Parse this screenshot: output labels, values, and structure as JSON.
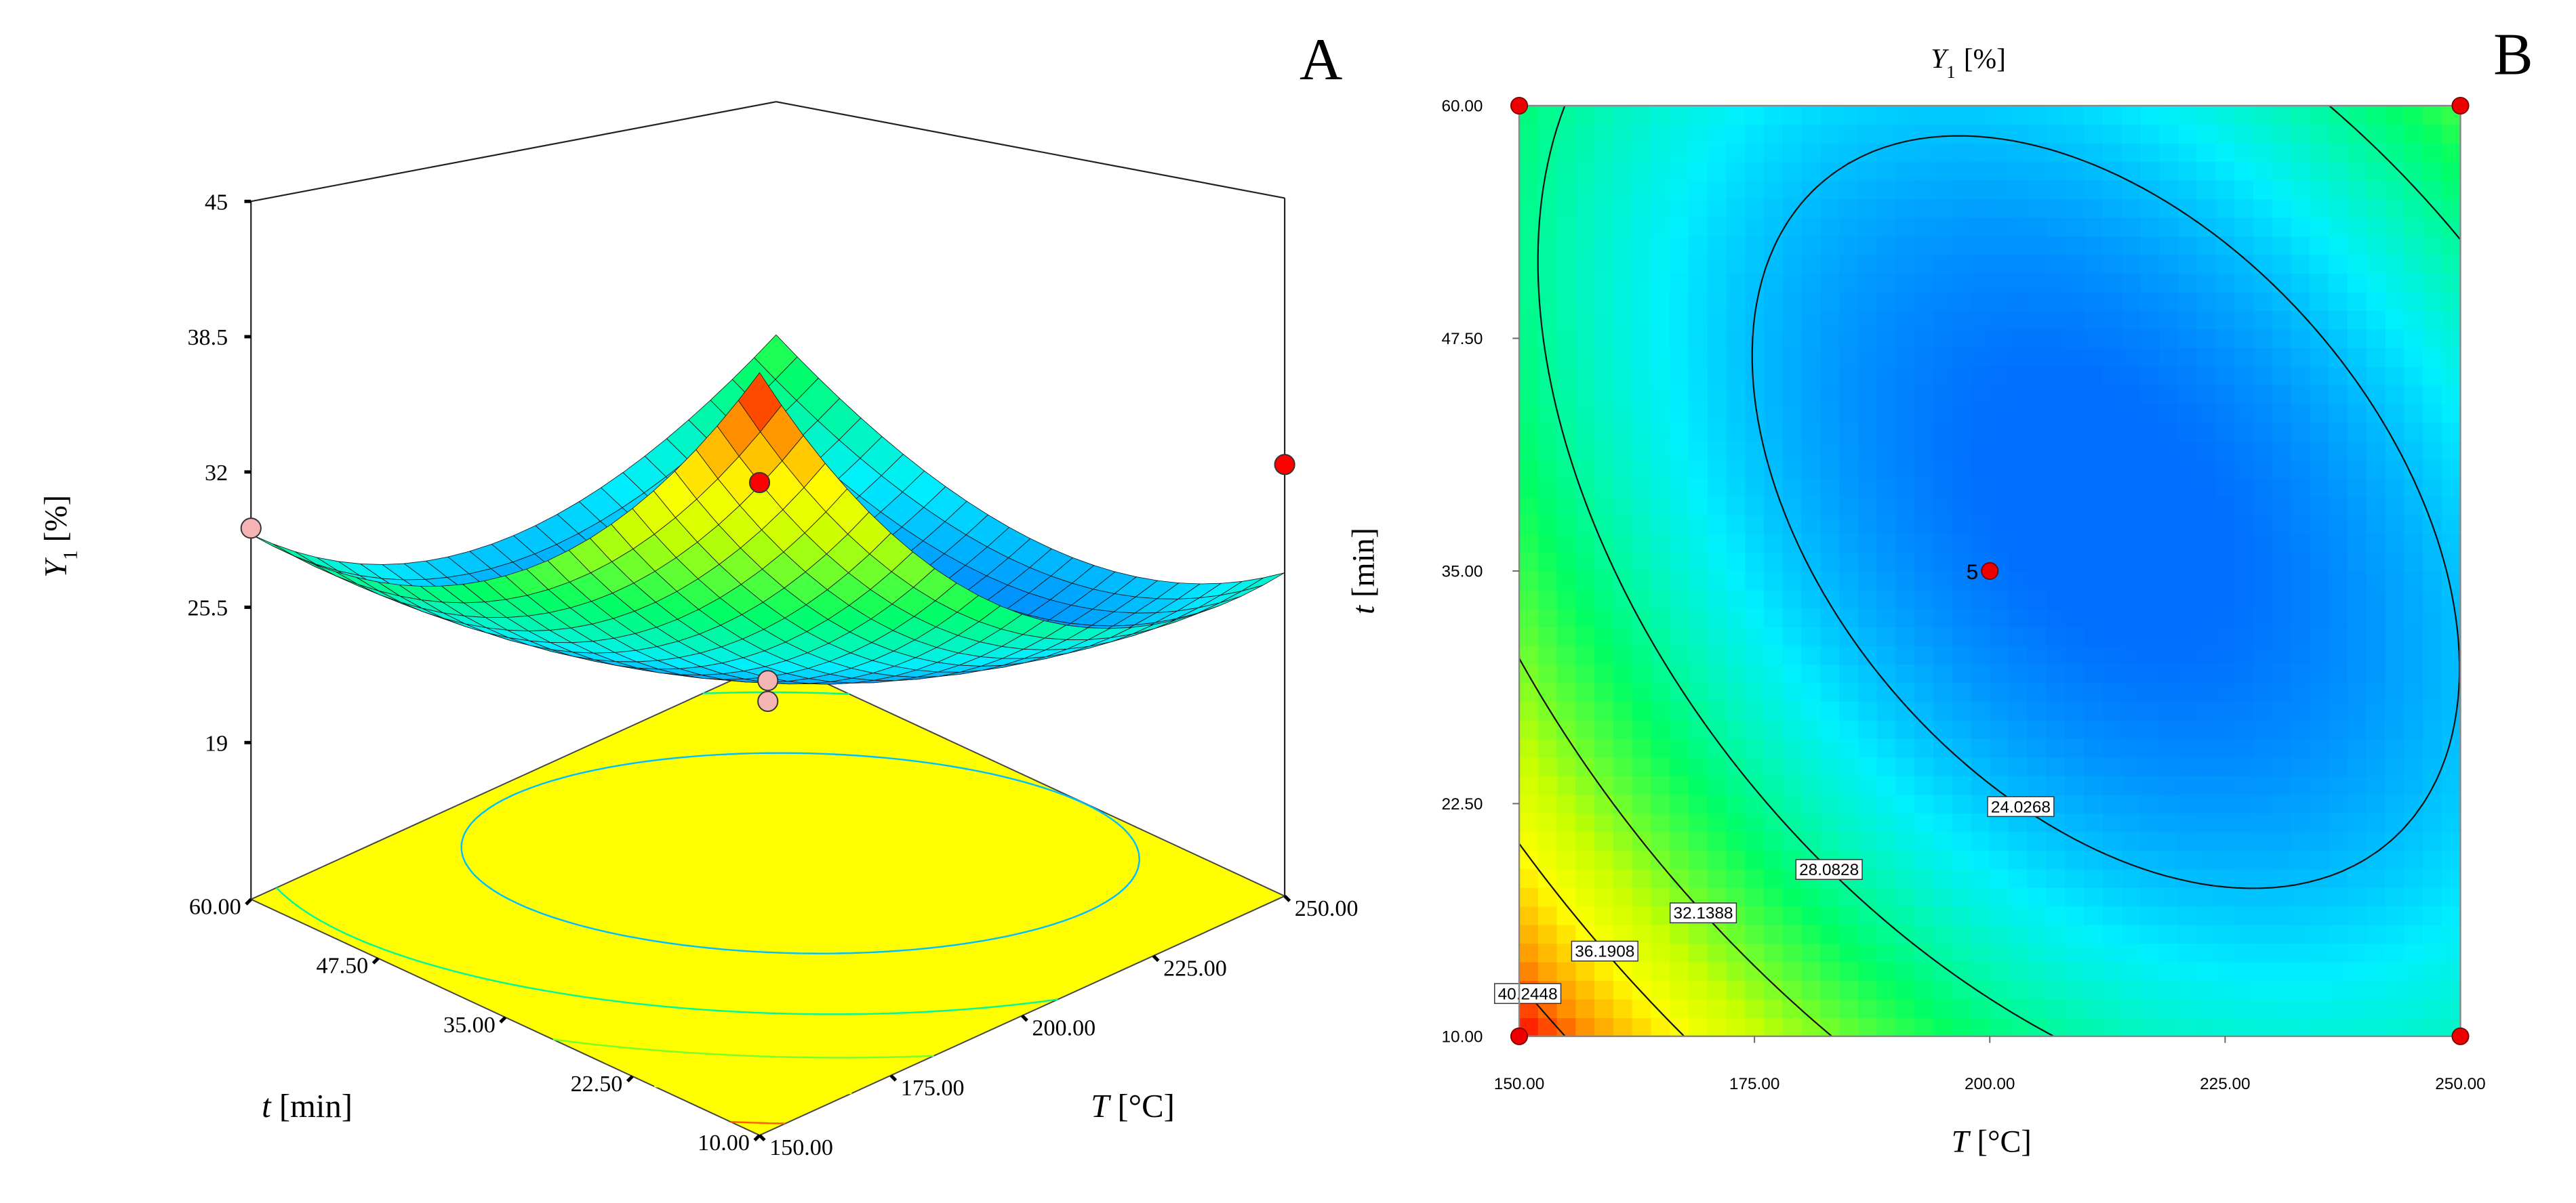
{
  "chart_data": [
    {
      "type": "surface3d",
      "panel_label": "A",
      "x_label": {
        "symbol": "T",
        "unit": "[°C]"
      },
      "y_label": {
        "symbol": "t",
        "unit": "[min]"
      },
      "z_label": {
        "symbol": "Y",
        "subscript": "1",
        "unit": "[%]"
      },
      "x": [
        150,
        175,
        200,
        225,
        250
      ],
      "y": [
        10,
        22.5,
        35,
        47.5,
        60
      ],
      "z": [
        [
          42,
          34.125,
          29,
          26.625,
          27
        ],
        [
          35.1875,
          28.375,
          24.3125,
          23,
          24.4375
        ],
        [
          30.75,
          25,
          22,
          21.75,
          24.25
        ],
        [
          28.6875,
          24,
          22.0625,
          22.875,
          26.4375
        ],
        [
          29,
          25.375,
          24.5,
          26.375,
          31
        ]
      ],
      "xlim": [
        150,
        250
      ],
      "ylim": [
        10,
        60
      ],
      "zlim": [
        19,
        45
      ],
      "xticks": [
        {
          "value": 150,
          "label": "150.00"
        },
        {
          "value": 175,
          "label": "175.00"
        },
        {
          "value": 200,
          "label": "200.00"
        },
        {
          "value": 225,
          "label": "225.00"
        },
        {
          "value": 250,
          "label": "250.00"
        }
      ],
      "yticks": [
        {
          "value": 10,
          "label": "10.00"
        },
        {
          "value": 22.5,
          "label": "22.50"
        },
        {
          "value": 35,
          "label": "35.00"
        },
        {
          "value": 47.5,
          "label": "47.50"
        },
        {
          "value": 60,
          "label": "60.00"
        }
      ],
      "zticks": [
        19,
        25.5,
        32,
        38.5,
        45
      ],
      "design_points": {
        "x": [
          150,
          150,
          250,
          200,
          200
        ],
        "y": [
          10,
          60,
          10,
          35,
          35
        ],
        "z": [
          37.6,
          29.3,
          32.2,
          21.9,
          20.9
        ],
        "colors": [
          "#ff0000",
          "#f4b4b4",
          "#ff0000",
          "#f4b4b4",
          "#f4b4b4"
        ]
      }
    },
    {
      "type": "contour",
      "panel_label": "B",
      "title": {
        "symbol": "Y",
        "subscript": "1",
        "unit": "[%]"
      },
      "x_label": {
        "symbol": "T",
        "unit": "[°C]"
      },
      "y_label": {
        "symbol": "t",
        "unit": "[min]"
      },
      "x": [
        150,
        175,
        200,
        225,
        250
      ],
      "y": [
        10,
        22.5,
        35,
        47.5,
        60
      ],
      "z": [
        [
          42,
          34.125,
          29,
          26.625,
          27
        ],
        [
          35.1875,
          28.375,
          24.3125,
          23,
          24.4375
        ],
        [
          30.75,
          25,
          22,
          21.75,
          24.25
        ],
        [
          28.6875,
          24,
          22.0625,
          22.875,
          26.4375
        ],
        [
          29,
          25.375,
          24.5,
          26.375,
          31
        ]
      ],
      "xlim": [
        150,
        250
      ],
      "ylim": [
        10,
        60
      ],
      "xticks": [
        {
          "value": 150,
          "label": "150.00"
        },
        {
          "value": 175,
          "label": "175.00"
        },
        {
          "value": 200,
          "label": "200.00"
        },
        {
          "value": 225,
          "label": "225.00"
        },
        {
          "value": 250,
          "label": "250.00"
        }
      ],
      "yticks": [
        {
          "value": 10,
          "label": "10.00"
        },
        {
          "value": 22.5,
          "label": "22.50"
        },
        {
          "value": 35,
          "label": "35.00"
        },
        {
          "value": 47.5,
          "label": "47.50"
        },
        {
          "value": 60,
          "label": "60.00"
        }
      ],
      "contour_levels": [
        24.0268,
        28.0828,
        32.1388,
        36.1908,
        40.2448
      ],
      "design_points": {
        "x": [
          150,
          150,
          250,
          250,
          200
        ],
        "y": [
          10,
          60,
          60,
          10,
          35
        ],
        "color": "#ee0000"
      },
      "center_replicates": 5
    }
  ]
}
